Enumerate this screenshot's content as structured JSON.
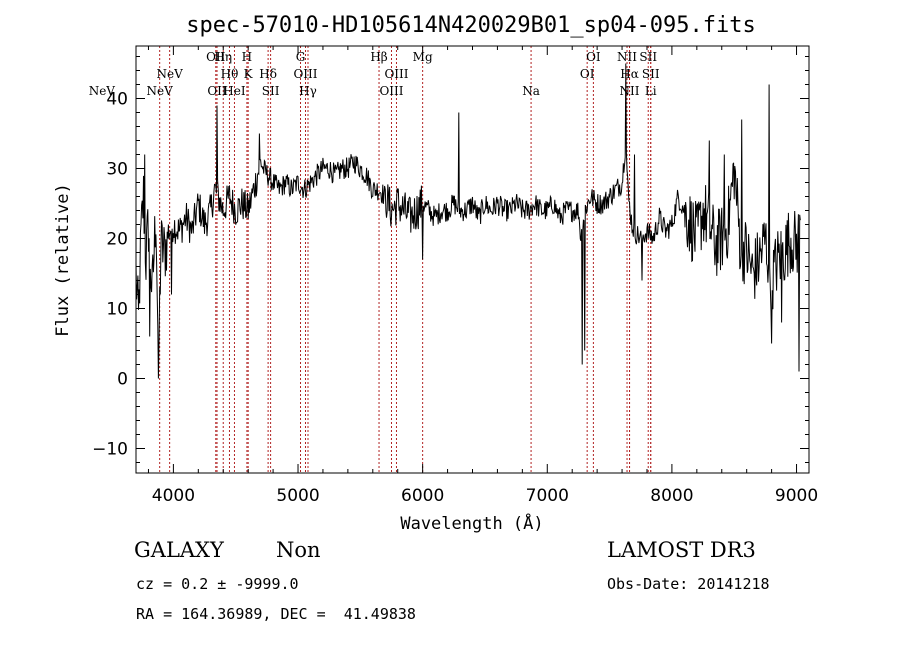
{
  "chart_data": {
    "type": "line",
    "title": "spec-57010-HD105614N420029B01_sp04-095.fits",
    "xlabel": "Wavelength (Å)",
    "ylabel": "Flux (relative)",
    "xlim": [
      3700,
      9100
    ],
    "ylim": [
      -13.5,
      47.5
    ],
    "xticks": [
      4000,
      5000,
      6000,
      7000,
      8000,
      9000
    ],
    "yticks": [
      -10,
      0,
      10,
      20,
      30,
      40
    ],
    "grid": false,
    "legend": "none",
    "line_color": "#000000",
    "marker_color": "#b22222",
    "spectral_lines": [
      {
        "label": "NeV",
        "wavelength": 3426,
        "row": 3
      },
      {
        "label": "NeV",
        "wavelength": 3890,
        "row": 3
      },
      {
        "label": "NeV",
        "wavelength": 3970,
        "row": 2
      },
      {
        "label": "OII",
        "wavelength": 4340,
        "row": 1
      },
      {
        "label": "Hη",
        "wavelength": 4400,
        "row": 1
      },
      {
        "label": "H",
        "wavelength": 4590,
        "row": 1
      },
      {
        "label": "Hθ",
        "wavelength": 4450,
        "row": 2
      },
      {
        "label": "K",
        "wavelength": 4600,
        "row": 2
      },
      {
        "label": "Hδ",
        "wavelength": 4760,
        "row": 2
      },
      {
        "label": "OII",
        "wavelength": 4350,
        "row": 3
      },
      {
        "label": "HeI",
        "wavelength": 4490,
        "row": 3
      },
      {
        "label": "SII",
        "wavelength": 4780,
        "row": 3
      },
      {
        "label": "G",
        "wavelength": 5020,
        "row": 1
      },
      {
        "label": "OIII",
        "wavelength": 5060,
        "row": 2
      },
      {
        "label": "Hγ",
        "wavelength": 5080,
        "row": 3
      },
      {
        "label": "Hβ",
        "wavelength": 5650,
        "row": 1
      },
      {
        "label": "Mg",
        "wavelength": 6000,
        "row": 1
      },
      {
        "label": "OIII",
        "wavelength": 5790,
        "row": 2
      },
      {
        "label": "OIII",
        "wavelength": 5750,
        "row": 3
      },
      {
        "label": "Na",
        "wavelength": 6870,
        "row": 3
      },
      {
        "label": "OI",
        "wavelength": 7370,
        "row": 1
      },
      {
        "label": "OI",
        "wavelength": 7320,
        "row": 2
      },
      {
        "label": "NII",
        "wavelength": 7640,
        "row": 1
      },
      {
        "label": "Hα",
        "wavelength": 7660,
        "row": 2
      },
      {
        "label": "NII",
        "wavelength": 7660,
        "row": 3
      },
      {
        "label": "SII",
        "wavelength": 7810,
        "row": 1
      },
      {
        "label": "SII",
        "wavelength": 7830,
        "row": 2
      },
      {
        "label": "Li",
        "wavelength": 7830,
        "row": 3
      }
    ],
    "spectrum_anchors": {
      "x": [
        3700,
        3720,
        3740,
        3760,
        3780,
        3800,
        3830,
        3860,
        3880,
        3900,
        3930,
        3960,
        4000,
        4050,
        4100,
        4150,
        4200,
        4250,
        4300,
        4330,
        4360,
        4400,
        4450,
        4500,
        4550,
        4600,
        4630,
        4660,
        4700,
        4720,
        4760,
        4800,
        4850,
        4900,
        4950,
        5000,
        5050,
        5100,
        5150,
        5200,
        5250,
        5300,
        5350,
        5400,
        5450,
        5500,
        5550,
        5600,
        5650,
        5700,
        5750,
        5800,
        5850,
        5900,
        5950,
        6000,
        6050,
        6100,
        6150,
        6200,
        6250,
        6300,
        6350,
        6400,
        6450,
        6500,
        6550,
        6600,
        6650,
        6700,
        6750,
        6800,
        6850,
        6900,
        6950,
        7000,
        7050,
        7100,
        7150,
        7200,
        7250,
        7270,
        7300,
        7350,
        7400,
        7450,
        7500,
        7550,
        7600,
        7630,
        7650,
        7680,
        7700,
        7750,
        7800,
        7850,
        7900,
        7950,
        8000,
        8050,
        8100,
        8150,
        8200,
        8250,
        8300,
        8350,
        8400,
        8450,
        8500,
        8550,
        8600,
        8650,
        8700,
        8750,
        8800,
        8850,
        8900,
        8950,
        9000,
        9050
      ],
      "y": [
        15,
        8,
        20,
        26,
        17,
        22,
        12,
        24,
        2,
        19,
        18,
        21,
        22,
        21,
        23,
        21,
        25,
        22,
        24,
        27,
        26,
        24,
        26,
        24,
        25,
        24,
        26,
        28,
        31,
        30,
        29,
        28,
        27,
        28,
        27,
        28,
        27,
        28,
        29,
        30,
        30,
        29,
        30,
        30,
        31,
        30,
        29,
        27,
        27,
        26,
        24,
        25,
        24,
        23,
        24,
        25,
        24,
        23,
        24,
        24,
        25,
        24,
        24,
        25,
        23,
        25,
        24,
        25,
        24,
        24,
        25,
        24,
        24,
        25,
        24,
        24,
        25,
        23,
        24,
        24,
        24,
        20,
        24,
        26,
        25,
        25,
        26,
        27,
        28,
        34,
        26,
        22,
        21,
        20,
        21,
        20,
        23,
        21,
        22,
        26,
        24,
        22,
        20,
        24,
        22,
        19,
        20,
        22,
        30,
        19,
        18,
        15,
        17,
        20,
        14,
        17,
        18,
        20,
        19,
        22
      ]
    },
    "spectrum_features": [
      {
        "x": 3770,
        "y": 32
      },
      {
        "x": 3810,
        "y": 6
      },
      {
        "x": 3880,
        "y": 0
      },
      {
        "x": 3985,
        "y": 12
      },
      {
        "x": 4350,
        "y": 39
      },
      {
        "x": 4690,
        "y": 35
      },
      {
        "x": 6000,
        "y": 17
      },
      {
        "x": 6290,
        "y": 38
      },
      {
        "x": 7280,
        "y": 2
      },
      {
        "x": 7300,
        "y": 4
      },
      {
        "x": 7632,
        "y": 45
      },
      {
        "x": 7700,
        "y": 32
      },
      {
        "x": 7760,
        "y": 14
      },
      {
        "x": 8300,
        "y": 34
      },
      {
        "x": 8420,
        "y": 32
      },
      {
        "x": 8560,
        "y": 37
      },
      {
        "x": 8780,
        "y": 42
      },
      {
        "x": 8800,
        "y": 5
      },
      {
        "x": 8880,
        "y": 8
      },
      {
        "x": 9020,
        "y": 1
      }
    ]
  },
  "info": {
    "object_class": "GALAXY",
    "subclass": "Non",
    "survey": "LAMOST DR3",
    "redshift_line": "cz = 0.2 ± -9999.0",
    "obs_date_line": "Obs-Date: 20141218",
    "coords_line": "RA = 164.36989, DEC =  41.49838"
  }
}
